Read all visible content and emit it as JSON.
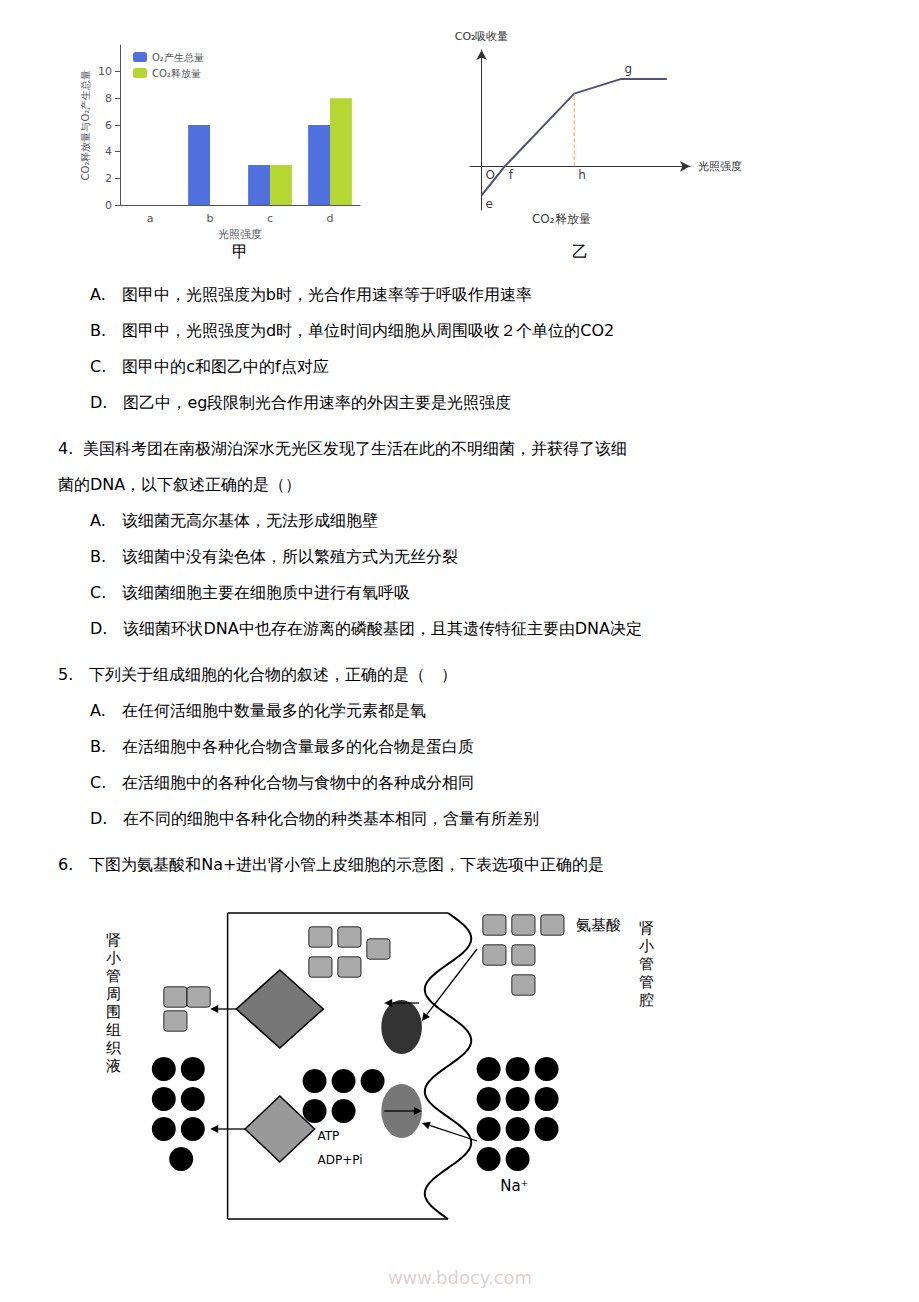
{
  "chart_data": [
    {
      "type": "bar",
      "title": "甲",
      "categories": [
        "a",
        "b",
        "c",
        "d"
      ],
      "series": [
        {
          "name": "O₂产生总量",
          "values": [
            0,
            6,
            3,
            6
          ]
        },
        {
          "name": "CO₂释放量",
          "values": [
            0,
            0,
            3,
            8
          ]
        }
      ],
      "xlabel": "光照强度",
      "ylabel": "CO₂释放量与O₂产生总量",
      "ylim": [
        0,
        12
      ],
      "yticks": [
        0,
        2,
        4,
        6,
        8,
        10
      ],
      "legend": "upper left",
      "grid": false
    },
    {
      "type": "line",
      "title": "乙",
      "xlabel": "光照强度",
      "ylabel": "CO₂吸收量",
      "xlim": [
        -0.5,
        9
      ],
      "ylim": [
        -3,
        8
      ],
      "tick_labels": false,
      "grid": false,
      "series": [
        {
          "x": [
            0,
            1,
            4,
            6,
            8
          ],
          "values": [
            -2,
            0,
            5,
            6,
            6
          ]
        },
        {
          "x": [
            4,
            4
          ],
          "values": [
            0,
            5
          ],
          "line_style": "dashed"
        }
      ],
      "annotations": [
        {
          "text": "O",
          "x": 0,
          "y": 0
        },
        {
          "text": "f",
          "x": 1,
          "y": 0
        },
        {
          "text": "h",
          "x": 4,
          "y": 0
        },
        {
          "text": "g",
          "x": 6,
          "y": 6
        },
        {
          "text": "e",
          "x": 0,
          "y": -2
        },
        {
          "text": "CO₂释放量",
          "x": 2,
          "y": -3
        }
      ]
    },
    {
      "type": "text",
      "annotations": [
        "A.　图甲中，光照强度为b时，光合作用速率等于呼吸作用速率",
        "B.　图甲中，光照强度为d时，单位时间内细胞从周围吸收２个单位的CO2",
        "C.　图甲中的c和图乙中的f点对应",
        "D.　图乙中，eg段限制光合作用速率的外因主要是光照强度",
        "4.  美国科考团在南极湖泊深水无光区发现了生活在此的不明细菌，并获得了该细",
        "菌的DNA，以下叙述正确的是（）",
        "A.　该细菌无高尔基体，无法形成细胞壁",
        "B.　该细菌中没有染色体，所以繁殖方式为无丝分裂",
        "C.　该细菌细胞主要在细胞质中进行有氧呼吸",
        "D.　该细菌环状DNA中也存在游离的磷酸基团，且其遗传特征主要由DNA决定",
        "5.　下列关于组成细胞的化合物的叙述，正确的是（　）",
        "A.　在任何活细胞中数量最多的化学元素都是氧",
        "B.　在活细胞中各种化合物含量最多的化合物是蛋白质",
        "C.　在活细胞中的各种化合物与食物中的各种成分相同",
        "D.　在不同的细胞中各种化合物的种类基本相同，含量有所差别",
        "6.　下图为氨基酸和Na+进出肾小管上皮细胞的示意图，下表选项中正确的是"
      ]
    },
    {
      "type": "diagram",
      "annotations": [
        "肾\n小\n管\n周\n围\n组\n织\n液",
        "肾\n小\n管\n管\n腔",
        "氨基酸",
        "Na⁺",
        "ATP",
        "ADP+Pi"
      ]
    },
    {
      "type": "watermark",
      "annotations": [
        "www.bdocy.com"
      ],
      "color": "#c8b0b0"
    }
  ]
}
